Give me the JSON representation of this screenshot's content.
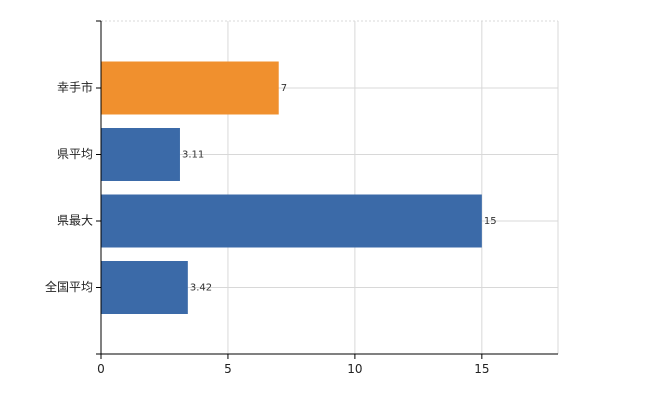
{
  "chart_data": {
    "type": "bar",
    "orientation": "horizontal",
    "title": "",
    "xlabel": "",
    "ylabel": "",
    "categories": [
      "幸手市",
      "県平均",
      "県最大",
      "全国平均"
    ],
    "values": [
      7,
      3.11,
      15,
      3.42
    ],
    "value_labels": [
      "7",
      "3.11",
      "15",
      "3.42"
    ],
    "bar_colors": [
      "#f0902e",
      "#3b6aa8",
      "#3b6aa8",
      "#3b6aa8"
    ],
    "xlim": [
      0,
      18
    ],
    "x_ticks": [
      0,
      5,
      10,
      15
    ],
    "x_tick_labels": [
      "0",
      "5",
      "10",
      "15"
    ],
    "grid": true,
    "legend": "none"
  }
}
